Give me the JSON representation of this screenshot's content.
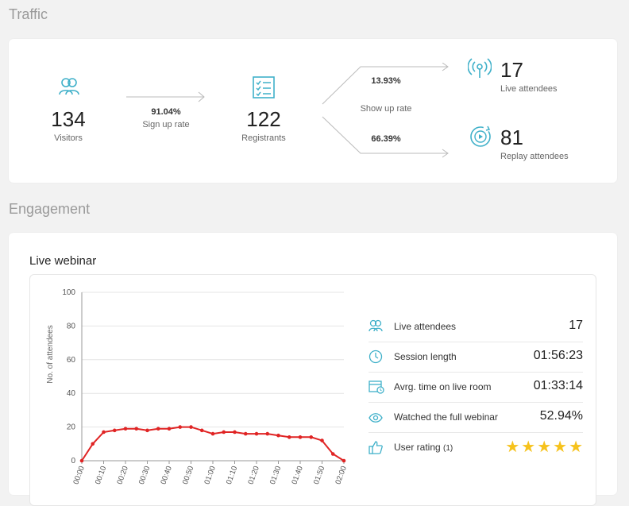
{
  "traffic": {
    "title": "Traffic",
    "visitors": {
      "value": "134",
      "label": "Visitors"
    },
    "signup": {
      "rate": "91.04%",
      "label": "Sign up rate"
    },
    "registrants": {
      "value": "122",
      "label": "Registrants"
    },
    "showup": {
      "label": "Show up rate",
      "live_rate": "13.93%",
      "replay_rate": "66.39%"
    },
    "live": {
      "value": "17",
      "label": "Live attendees"
    },
    "replay": {
      "value": "81",
      "label": "Replay attendees"
    }
  },
  "engagement": {
    "title": "Engagement",
    "card_title": "Live webinar",
    "stats": [
      {
        "label": "Live attendees",
        "value": "17",
        "icon": "users-icon"
      },
      {
        "label": "Session length",
        "value": "01:56:23",
        "icon": "clock-icon"
      },
      {
        "label": "Avrg. time on live room",
        "value": "01:33:14",
        "icon": "calendar-clock-icon"
      },
      {
        "label": "Watched the full webinar",
        "value": "52.94%",
        "icon": "eye-icon"
      },
      {
        "label": "User rating",
        "count": "(1)",
        "icon": "thumbs-up-icon",
        "stars": 5
      }
    ]
  },
  "colors": {
    "accent": "#3fb0c9",
    "line": "#e02424",
    "star": "#f6c21c"
  },
  "chart_data": {
    "type": "line",
    "ylabel": "No. of attendees",
    "xlabel": "",
    "ylim": [
      0,
      100
    ],
    "yticks": [
      "0",
      "20",
      "40",
      "60",
      "80",
      "100"
    ],
    "x": [
      "00:00",
      "00:10",
      "00:20",
      "00:30",
      "00:40",
      "00:50",
      "01:00",
      "01:10",
      "01:20",
      "01:30",
      "01:40",
      "01:50",
      "02:00"
    ],
    "points": [
      [
        "00:00",
        0
      ],
      [
        "00:05",
        10
      ],
      [
        "00:10",
        17
      ],
      [
        "00:15",
        18
      ],
      [
        "00:20",
        19
      ],
      [
        "00:25",
        19
      ],
      [
        "00:30",
        18
      ],
      [
        "00:35",
        19
      ],
      [
        "00:40",
        19
      ],
      [
        "00:45",
        20
      ],
      [
        "00:50",
        20
      ],
      [
        "00:55",
        18
      ],
      [
        "01:00",
        16
      ],
      [
        "01:05",
        17
      ],
      [
        "01:10",
        17
      ],
      [
        "01:15",
        16
      ],
      [
        "01:20",
        16
      ],
      [
        "01:25",
        16
      ],
      [
        "01:30",
        15
      ],
      [
        "01:35",
        14
      ],
      [
        "01:40",
        14
      ],
      [
        "01:45",
        14
      ],
      [
        "01:50",
        12
      ],
      [
        "01:55",
        4
      ],
      [
        "02:00",
        0
      ]
    ]
  }
}
